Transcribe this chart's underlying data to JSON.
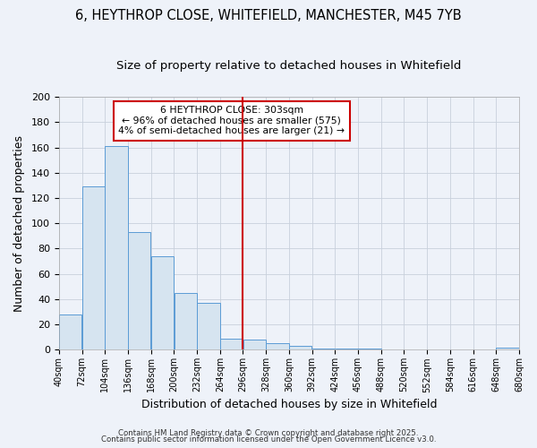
{
  "title": "6, HEYTHROP CLOSE, WHITEFIELD, MANCHESTER, M45 7YB",
  "subtitle": "Size of property relative to detached houses in Whitefield",
  "xlabel": "Distribution of detached houses by size in Whitefield",
  "ylabel": "Number of detached properties",
  "bin_edges": [
    40,
    72,
    104,
    136,
    168,
    200,
    232,
    264,
    296,
    328,
    360,
    392,
    424,
    456,
    488,
    520,
    552,
    584,
    616,
    648,
    680
  ],
  "bar_heights": [
    28,
    129,
    161,
    93,
    74,
    45,
    37,
    9,
    8,
    5,
    3,
    1,
    1,
    1,
    0,
    0,
    0,
    0,
    0,
    2
  ],
  "bar_color": "#d6e4f0",
  "bar_edge_color": "#5b9bd5",
  "vline_x": 296,
  "vline_color": "#cc0000",
  "annotation_text": "6 HEYTHROP CLOSE: 303sqm\n← 96% of detached houses are smaller (575)\n4% of semi-detached houses are larger (21) →",
  "annotation_box_color": "white",
  "annotation_box_edge": "#cc0000",
  "ylim": [
    0,
    200
  ],
  "yticks": [
    0,
    20,
    40,
    60,
    80,
    100,
    120,
    140,
    160,
    180,
    200
  ],
  "background_color": "#eef2f9",
  "grid_color": "#c8d0dc",
  "footer_line1": "Contains HM Land Registry data © Crown copyright and database right 2025.",
  "footer_line2": "Contains public sector information licensed under the Open Government Licence v3.0.",
  "title_fontsize": 10.5,
  "subtitle_fontsize": 9.5
}
